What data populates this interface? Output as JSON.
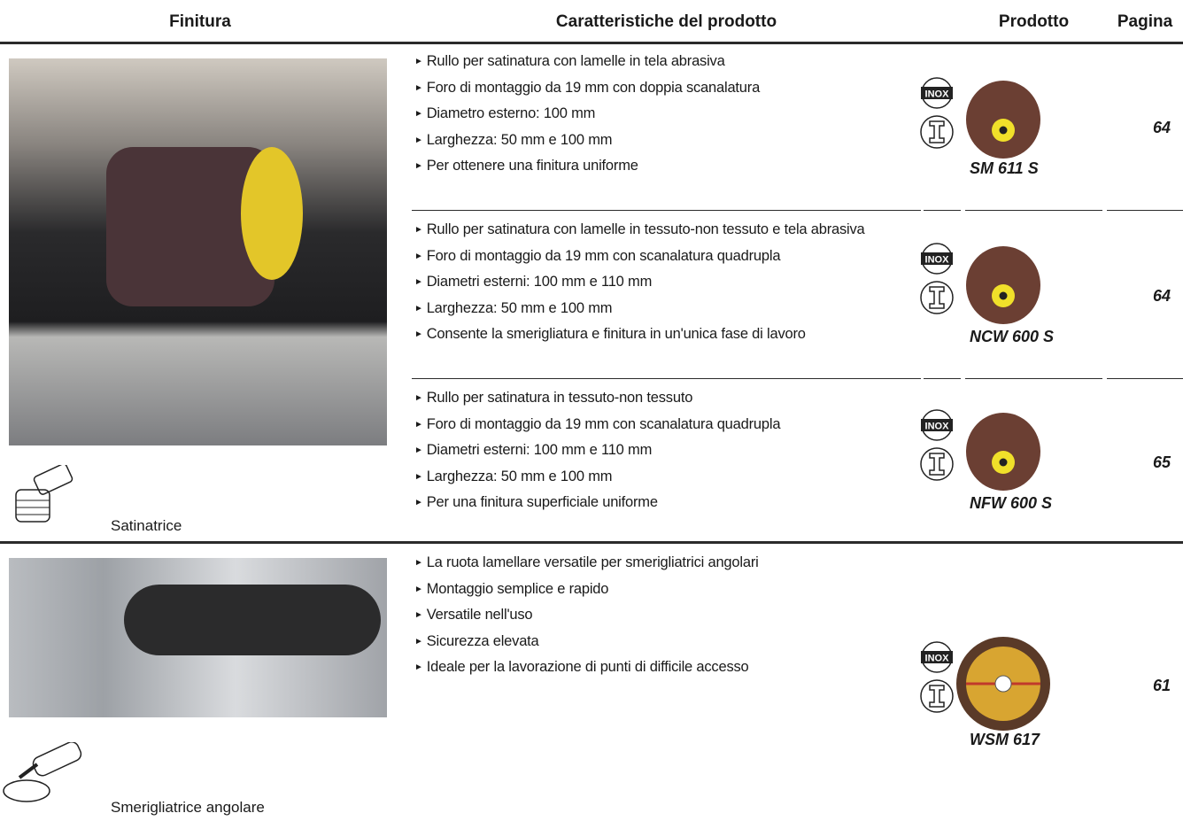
{
  "header": {
    "columns": [
      "Finitura",
      "Caratteristiche del prodotto",
      "Prodotto",
      "Pagina"
    ]
  },
  "icon_label": "INOX",
  "groups": [
    {
      "tool": "Satinatrice",
      "rows": [
        {
          "features": [
            "Rullo per satinatura con lamelle in tela abrasiva",
            "Foro di montaggio da 19 mm con doppia scanalatura",
            "Diametro esterno: 100 mm",
            "Larghezza: 50 mm e 100 mm",
            "Per ottenere una finitura uniforme"
          ],
          "product": "SM 611 S",
          "page": 64
        },
        {
          "features": [
            "Rullo per satinatura con lamelle in tessuto-non tessuto e tela abrasiva",
            "Foro di montaggio da 19 mm con scanalatura quadrupla",
            "Diametri esterni: 100 mm e 110 mm",
            "Larghezza: 50 mm e 100 mm",
            "Consente la smerigliatura e finitura in un'unica fase di lavoro"
          ],
          "product": "NCW 600 S",
          "page": 64
        },
        {
          "features": [
            "Rullo per satinatura in tessuto-non tessuto",
            "Foro di montaggio da 19 mm con scanalatura quadrupla",
            "Diametri esterni: 100 mm e 110 mm",
            "Larghezza: 50 mm e 100 mm",
            "Per una finitura superficiale uniforme"
          ],
          "product": "NFW 600 S",
          "page": 65
        }
      ]
    },
    {
      "tool": "Smerigliatrice angolare",
      "rows": [
        {
          "features": [
            "La ruota lamellare versatile per smerigliatrici angolari",
            "Montaggio semplice e rapido",
            "Versatile nell'uso",
            "Sicurezza elevata",
            "Ideale per la lavorazione di punti di difficile accesso"
          ],
          "product": "WSM 617",
          "page": 61
        }
      ]
    }
  ]
}
